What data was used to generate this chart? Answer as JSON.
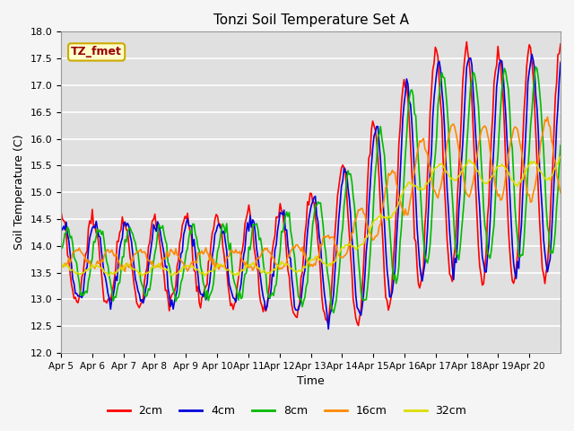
{
  "title": "Tonzi Soil Temperature Set A",
  "xlabel": "Time",
  "ylabel": "Soil Temperature (C)",
  "ylim": [
    12.0,
    18.0
  ],
  "yticks": [
    12.0,
    12.5,
    13.0,
    13.5,
    14.0,
    14.5,
    15.0,
    15.5,
    16.0,
    16.5,
    17.0,
    17.5,
    18.0
  ],
  "bg_color": "#e0e0e0",
  "fig_color": "#f5f5f5",
  "legend_label": "TZ_fmet",
  "legend_box_color": "#ffffcc",
  "legend_box_edge": "#ccaa00",
  "series_colors": {
    "2cm": "#ff0000",
    "4cm": "#0000dd",
    "8cm": "#00bb00",
    "16cm": "#ff8800",
    "32cm": "#dddd00"
  },
  "series_lw": 1.2,
  "x_tick_labels": [
    "Apr 5",
    "Apr 6",
    "Apr 7",
    "Apr 8",
    "Apr 9",
    "Apr 10",
    "Apr 11",
    "Apr 12",
    "Apr 13",
    "Apr 14",
    "Apr 15",
    "Apr 16",
    "Apr 17",
    "Apr 18",
    "Apr 19",
    "Apr 20"
  ],
  "n_points": 384
}
